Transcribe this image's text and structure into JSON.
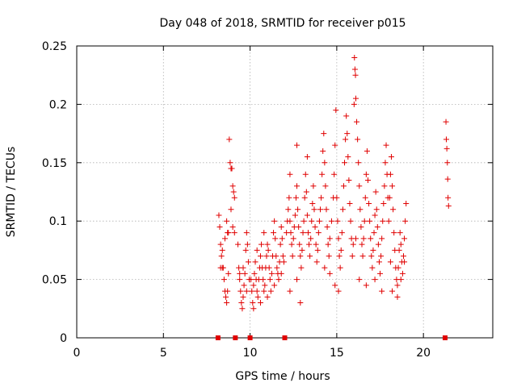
{
  "chart_data": {
    "type": "scatter",
    "title": "Day 048 of 2018, SRMTID for receiver p015",
    "xlabel": "GPS time / hours",
    "ylabel": "SRMTID / TECUs",
    "xlim": [
      0,
      24
    ],
    "ylim": [
      0,
      0.25
    ],
    "xticks": [
      0,
      5,
      10,
      15,
      20
    ],
    "xtick_labels": [
      "0",
      "5",
      "10",
      "15",
      "20"
    ],
    "yticks": [
      0,
      0.05,
      0.1,
      0.15,
      0.2,
      0.25
    ],
    "ytick_labels": [
      "0",
      "0.05",
      "0.1",
      "0.15",
      "0.2",
      "0.25"
    ],
    "grid": true,
    "marker": "+",
    "color": "#e00000",
    "zero_markers_x": [
      8.15,
      9.15,
      10.0,
      12.0,
      21.25
    ],
    "series": [
      {
        "name": "p015",
        "points": [
          [
            8.2,
            0.105
          ],
          [
            8.25,
            0.095
          ],
          [
            8.3,
            0.08
          ],
          [
            8.35,
            0.07
          ],
          [
            8.4,
            0.06
          ],
          [
            8.45,
            0.06
          ],
          [
            8.5,
            0.05
          ],
          [
            8.55,
            0.04
          ],
          [
            8.6,
            0.035
          ],
          [
            8.65,
            0.03
          ],
          [
            8.7,
            0.04
          ],
          [
            8.75,
            0.055
          ],
          [
            8.7,
            0.09
          ],
          [
            8.65,
            0.1
          ],
          [
            8.8,
            0.17
          ],
          [
            8.85,
            0.15
          ],
          [
            8.9,
            0.145
          ],
          [
            8.95,
            0.145
          ],
          [
            9.0,
            0.13
          ],
          [
            9.05,
            0.125
          ],
          [
            9.1,
            0.12
          ],
          [
            8.9,
            0.11
          ],
          [
            9.0,
            0.095
          ],
          [
            9.1,
            0.09
          ],
          [
            8.3,
            0.06
          ],
          [
            8.4,
            0.075
          ],
          [
            8.55,
            0.085
          ],
          [
            8.75,
            0.09
          ],
          [
            9.3,
            0.08
          ],
          [
            9.35,
            0.06
          ],
          [
            9.4,
            0.05
          ],
          [
            9.45,
            0.04
          ],
          [
            9.5,
            0.03
          ],
          [
            9.55,
            0.025
          ],
          [
            9.6,
            0.035
          ],
          [
            9.65,
            0.045
          ],
          [
            9.7,
            0.055
          ],
          [
            9.75,
            0.075
          ],
          [
            9.8,
            0.09
          ],
          [
            9.85,
            0.08
          ],
          [
            9.9,
            0.065
          ],
          [
            9.95,
            0.05
          ],
          [
            9.4,
            0.055
          ],
          [
            9.6,
            0.06
          ],
          [
            9.8,
            0.04
          ],
          [
            10.05,
            0.05
          ],
          [
            10.1,
            0.04
          ],
          [
            10.15,
            0.03
          ],
          [
            10.2,
            0.045
          ],
          [
            10.25,
            0.055
          ],
          [
            10.3,
            0.065
          ],
          [
            10.35,
            0.05
          ],
          [
            10.4,
            0.04
          ],
          [
            10.45,
            0.035
          ],
          [
            10.5,
            0.05
          ],
          [
            10.55,
            0.06
          ],
          [
            10.6,
            0.07
          ],
          [
            10.65,
            0.08
          ],
          [
            10.7,
            0.06
          ],
          [
            10.75,
            0.05
          ],
          [
            10.8,
            0.04
          ],
          [
            10.85,
            0.045
          ],
          [
            10.9,
            0.06
          ],
          [
            10.95,
            0.07
          ],
          [
            11.0,
            0.08
          ],
          [
            11.05,
            0.075
          ],
          [
            11.1,
            0.06
          ],
          [
            11.15,
            0.05
          ],
          [
            11.2,
            0.04
          ],
          [
            11.25,
            0.055
          ],
          [
            11.3,
            0.07
          ],
          [
            11.35,
            0.09
          ],
          [
            11.4,
            0.1
          ],
          [
            11.45,
            0.085
          ],
          [
            11.5,
            0.07
          ],
          [
            11.55,
            0.06
          ],
          [
            11.6,
            0.055
          ],
          [
            11.65,
            0.05
          ],
          [
            11.7,
            0.065
          ],
          [
            11.75,
            0.08
          ],
          [
            11.8,
            0.095
          ],
          [
            11.85,
            0.085
          ],
          [
            11.9,
            0.07
          ],
          [
            11.95,
            0.065
          ],
          [
            10.2,
            0.025
          ],
          [
            10.6,
            0.03
          ],
          [
            11.0,
            0.035
          ],
          [
            11.4,
            0.045
          ],
          [
            11.8,
            0.055
          ],
          [
            10.4,
            0.075
          ],
          [
            10.8,
            0.09
          ],
          [
            12.1,
            0.09
          ],
          [
            12.15,
            0.1
          ],
          [
            12.2,
            0.11
          ],
          [
            12.25,
            0.12
          ],
          [
            12.3,
            0.1
          ],
          [
            12.35,
            0.09
          ],
          [
            12.4,
            0.08
          ],
          [
            12.45,
            0.07
          ],
          [
            12.5,
            0.085
          ],
          [
            12.55,
            0.095
          ],
          [
            12.6,
            0.105
          ],
          [
            12.65,
            0.12
          ],
          [
            12.7,
            0.13
          ],
          [
            12.75,
            0.11
          ],
          [
            12.8,
            0.095
          ],
          [
            12.85,
            0.08
          ],
          [
            12.9,
            0.07
          ],
          [
            12.95,
            0.06
          ],
          [
            13.0,
            0.075
          ],
          [
            13.05,
            0.09
          ],
          [
            13.1,
            0.1
          ],
          [
            13.15,
            0.12
          ],
          [
            13.2,
            0.14
          ],
          [
            13.25,
            0.125
          ],
          [
            13.3,
            0.105
          ],
          [
            13.35,
            0.09
          ],
          [
            13.4,
            0.08
          ],
          [
            13.45,
            0.07
          ],
          [
            13.5,
            0.085
          ],
          [
            13.55,
            0.1
          ],
          [
            13.6,
            0.115
          ],
          [
            13.65,
            0.13
          ],
          [
            13.7,
            0.11
          ],
          [
            13.75,
            0.095
          ],
          [
            13.8,
            0.08
          ],
          [
            13.85,
            0.065
          ],
          [
            13.9,
            0.075
          ],
          [
            13.95,
            0.09
          ],
          [
            12.3,
            0.04
          ],
          [
            12.7,
            0.05
          ],
          [
            12.9,
            0.03
          ],
          [
            12.7,
            0.165
          ],
          [
            12.3,
            0.14
          ],
          [
            13.3,
            0.155
          ],
          [
            14.0,
            0.1
          ],
          [
            14.05,
            0.11
          ],
          [
            14.1,
            0.12
          ],
          [
            14.15,
            0.14
          ],
          [
            14.2,
            0.16
          ],
          [
            14.25,
            0.175
          ],
          [
            14.3,
            0.15
          ],
          [
            14.35,
            0.13
          ],
          [
            14.4,
            0.11
          ],
          [
            14.45,
            0.095
          ],
          [
            14.5,
            0.08
          ],
          [
            14.55,
            0.07
          ],
          [
            14.6,
            0.085
          ],
          [
            14.7,
            0.1
          ],
          [
            14.8,
            0.12
          ],
          [
            14.85,
            0.14
          ],
          [
            14.9,
            0.165
          ],
          [
            14.95,
            0.195
          ],
          [
            15.0,
            0.12
          ],
          [
            15.05,
            0.1
          ],
          [
            15.1,
            0.085
          ],
          [
            15.15,
            0.07
          ],
          [
            15.2,
            0.06
          ],
          [
            15.25,
            0.075
          ],
          [
            15.3,
            0.09
          ],
          [
            15.35,
            0.11
          ],
          [
            15.4,
            0.13
          ],
          [
            15.45,
            0.15
          ],
          [
            15.5,
            0.17
          ],
          [
            15.55,
            0.19
          ],
          [
            15.6,
            0.175
          ],
          [
            15.65,
            0.155
          ],
          [
            15.7,
            0.135
          ],
          [
            15.75,
            0.115
          ],
          [
            15.8,
            0.1
          ],
          [
            15.85,
            0.085
          ],
          [
            15.9,
            0.07
          ],
          [
            15.95,
            0.08
          ],
          [
            14.6,
            0.055
          ],
          [
            14.9,
            0.045
          ],
          [
            15.1,
            0.04
          ],
          [
            14.3,
            0.06
          ],
          [
            16.0,
            0.2
          ],
          [
            16.02,
            0.24
          ],
          [
            16.05,
            0.23
          ],
          [
            16.08,
            0.225
          ],
          [
            16.1,
            0.205
          ],
          [
            16.15,
            0.185
          ],
          [
            16.2,
            0.17
          ],
          [
            16.25,
            0.15
          ],
          [
            16.3,
            0.13
          ],
          [
            16.35,
            0.11
          ],
          [
            16.4,
            0.095
          ],
          [
            16.45,
            0.08
          ],
          [
            16.5,
            0.07
          ],
          [
            16.55,
            0.085
          ],
          [
            16.6,
            0.1
          ],
          [
            16.65,
            0.12
          ],
          [
            16.7,
            0.14
          ],
          [
            16.75,
            0.16
          ],
          [
            16.8,
            0.135
          ],
          [
            16.85,
            0.115
          ],
          [
            16.9,
            0.1
          ],
          [
            16.95,
            0.085
          ],
          [
            17.0,
            0.07
          ],
          [
            17.05,
            0.06
          ],
          [
            17.1,
            0.075
          ],
          [
            17.15,
            0.09
          ],
          [
            17.2,
            0.105
          ],
          [
            17.25,
            0.125
          ],
          [
            17.3,
            0.11
          ],
          [
            17.35,
            0.095
          ],
          [
            17.4,
            0.08
          ],
          [
            17.45,
            0.065
          ],
          [
            17.5,
            0.055
          ],
          [
            17.55,
            0.07
          ],
          [
            17.6,
            0.085
          ],
          [
            17.65,
            0.1
          ],
          [
            17.7,
            0.115
          ],
          [
            17.75,
            0.13
          ],
          [
            17.8,
            0.15
          ],
          [
            17.85,
            0.165
          ],
          [
            17.9,
            0.14
          ],
          [
            17.95,
            0.12
          ],
          [
            16.3,
            0.05
          ],
          [
            16.7,
            0.045
          ],
          [
            17.2,
            0.05
          ],
          [
            17.6,
            0.04
          ],
          [
            16.1,
            0.085
          ],
          [
            18.0,
            0.1
          ],
          [
            18.05,
            0.12
          ],
          [
            18.1,
            0.14
          ],
          [
            18.15,
            0.155
          ],
          [
            18.2,
            0.13
          ],
          [
            18.25,
            0.11
          ],
          [
            18.3,
            0.09
          ],
          [
            18.35,
            0.075
          ],
          [
            18.4,
            0.06
          ],
          [
            18.45,
            0.05
          ],
          [
            18.5,
            0.045
          ],
          [
            18.55,
            0.06
          ],
          [
            18.6,
            0.075
          ],
          [
            18.65,
            0.09
          ],
          [
            18.7,
            0.08
          ],
          [
            18.75,
            0.065
          ],
          [
            18.8,
            0.055
          ],
          [
            18.85,
            0.07
          ],
          [
            18.9,
            0.085
          ],
          [
            18.95,
            0.1
          ],
          [
            19.0,
            0.115
          ],
          [
            18.2,
            0.04
          ],
          [
            18.5,
            0.035
          ],
          [
            18.7,
            0.05
          ],
          [
            18.9,
            0.065
          ],
          [
            18.1,
            0.065
          ],
          [
            21.3,
            0.185
          ],
          [
            21.32,
            0.17
          ],
          [
            21.35,
            0.162
          ],
          [
            21.38,
            0.15
          ],
          [
            21.4,
            0.136
          ],
          [
            21.42,
            0.12
          ],
          [
            21.45,
            0.113
          ]
        ]
      }
    ]
  }
}
